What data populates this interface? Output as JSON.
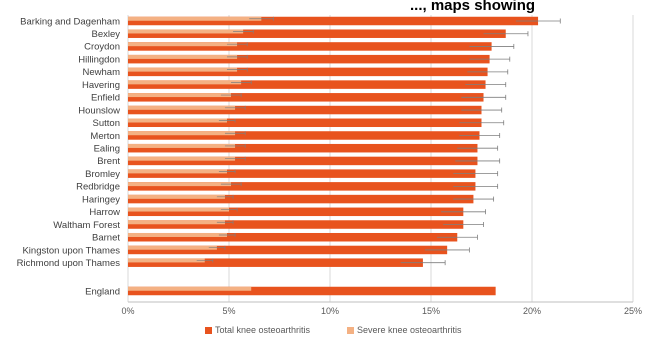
{
  "title_partial": "..., maps showing",
  "chart_data": {
    "type": "bar",
    "orientation": "horizontal",
    "categories": [
      "Barking and Dagenham",
      "Bexley",
      "Croydon",
      "Hillingdon",
      "Newham",
      "Havering",
      "Enfield",
      "Hounslow",
      "Sutton",
      "Merton",
      "Ealing",
      "Brent",
      "Bromley",
      "Redbridge",
      "Haringey",
      "Harrow",
      "Waltham Forest",
      "Barnet",
      "Kingston upon Thames",
      "Richmond upon Thames",
      "England"
    ],
    "series": [
      {
        "name": "Total knee osteoarthritis",
        "color": "#E8531E",
        "values": [
          20.3,
          18.7,
          18.0,
          17.9,
          17.8,
          17.7,
          17.6,
          17.5,
          17.5,
          17.4,
          17.3,
          17.3,
          17.2,
          17.2,
          17.1,
          16.6,
          16.6,
          16.3,
          15.8,
          14.6,
          18.2
        ],
        "error": [
          1.1,
          1.1,
          1.1,
          1.0,
          1.0,
          1.0,
          1.1,
          1.0,
          1.1,
          1.0,
          1.0,
          1.1,
          1.1,
          1.1,
          1.0,
          1.1,
          1.0,
          1.0,
          1.1,
          1.1,
          0
        ]
      },
      {
        "name": "Severe knee osteoarthritis",
        "color": "#F4B183",
        "values": [
          6.6,
          5.7,
          5.4,
          5.4,
          5.4,
          5.6,
          5.1,
          5.3,
          4.9,
          5.3,
          5.3,
          5.3,
          4.9,
          5.1,
          4.8,
          5.0,
          4.8,
          4.9,
          4.4,
          3.8,
          6.1
        ],
        "error": [
          0.6,
          0.5,
          0.5,
          0.5,
          0.5,
          0.5,
          0.5,
          0.5,
          0.4,
          0.5,
          0.5,
          0.5,
          0.4,
          0.5,
          0.4,
          0.4,
          0.4,
          0.4,
          0.4,
          0.4,
          0
        ]
      }
    ],
    "x_ticks": [
      "0%",
      "5%",
      "10%",
      "15%",
      "20%",
      "25%"
    ],
    "xlim": [
      0,
      25
    ],
    "grid": "vertical",
    "legend_position": "bottom"
  }
}
